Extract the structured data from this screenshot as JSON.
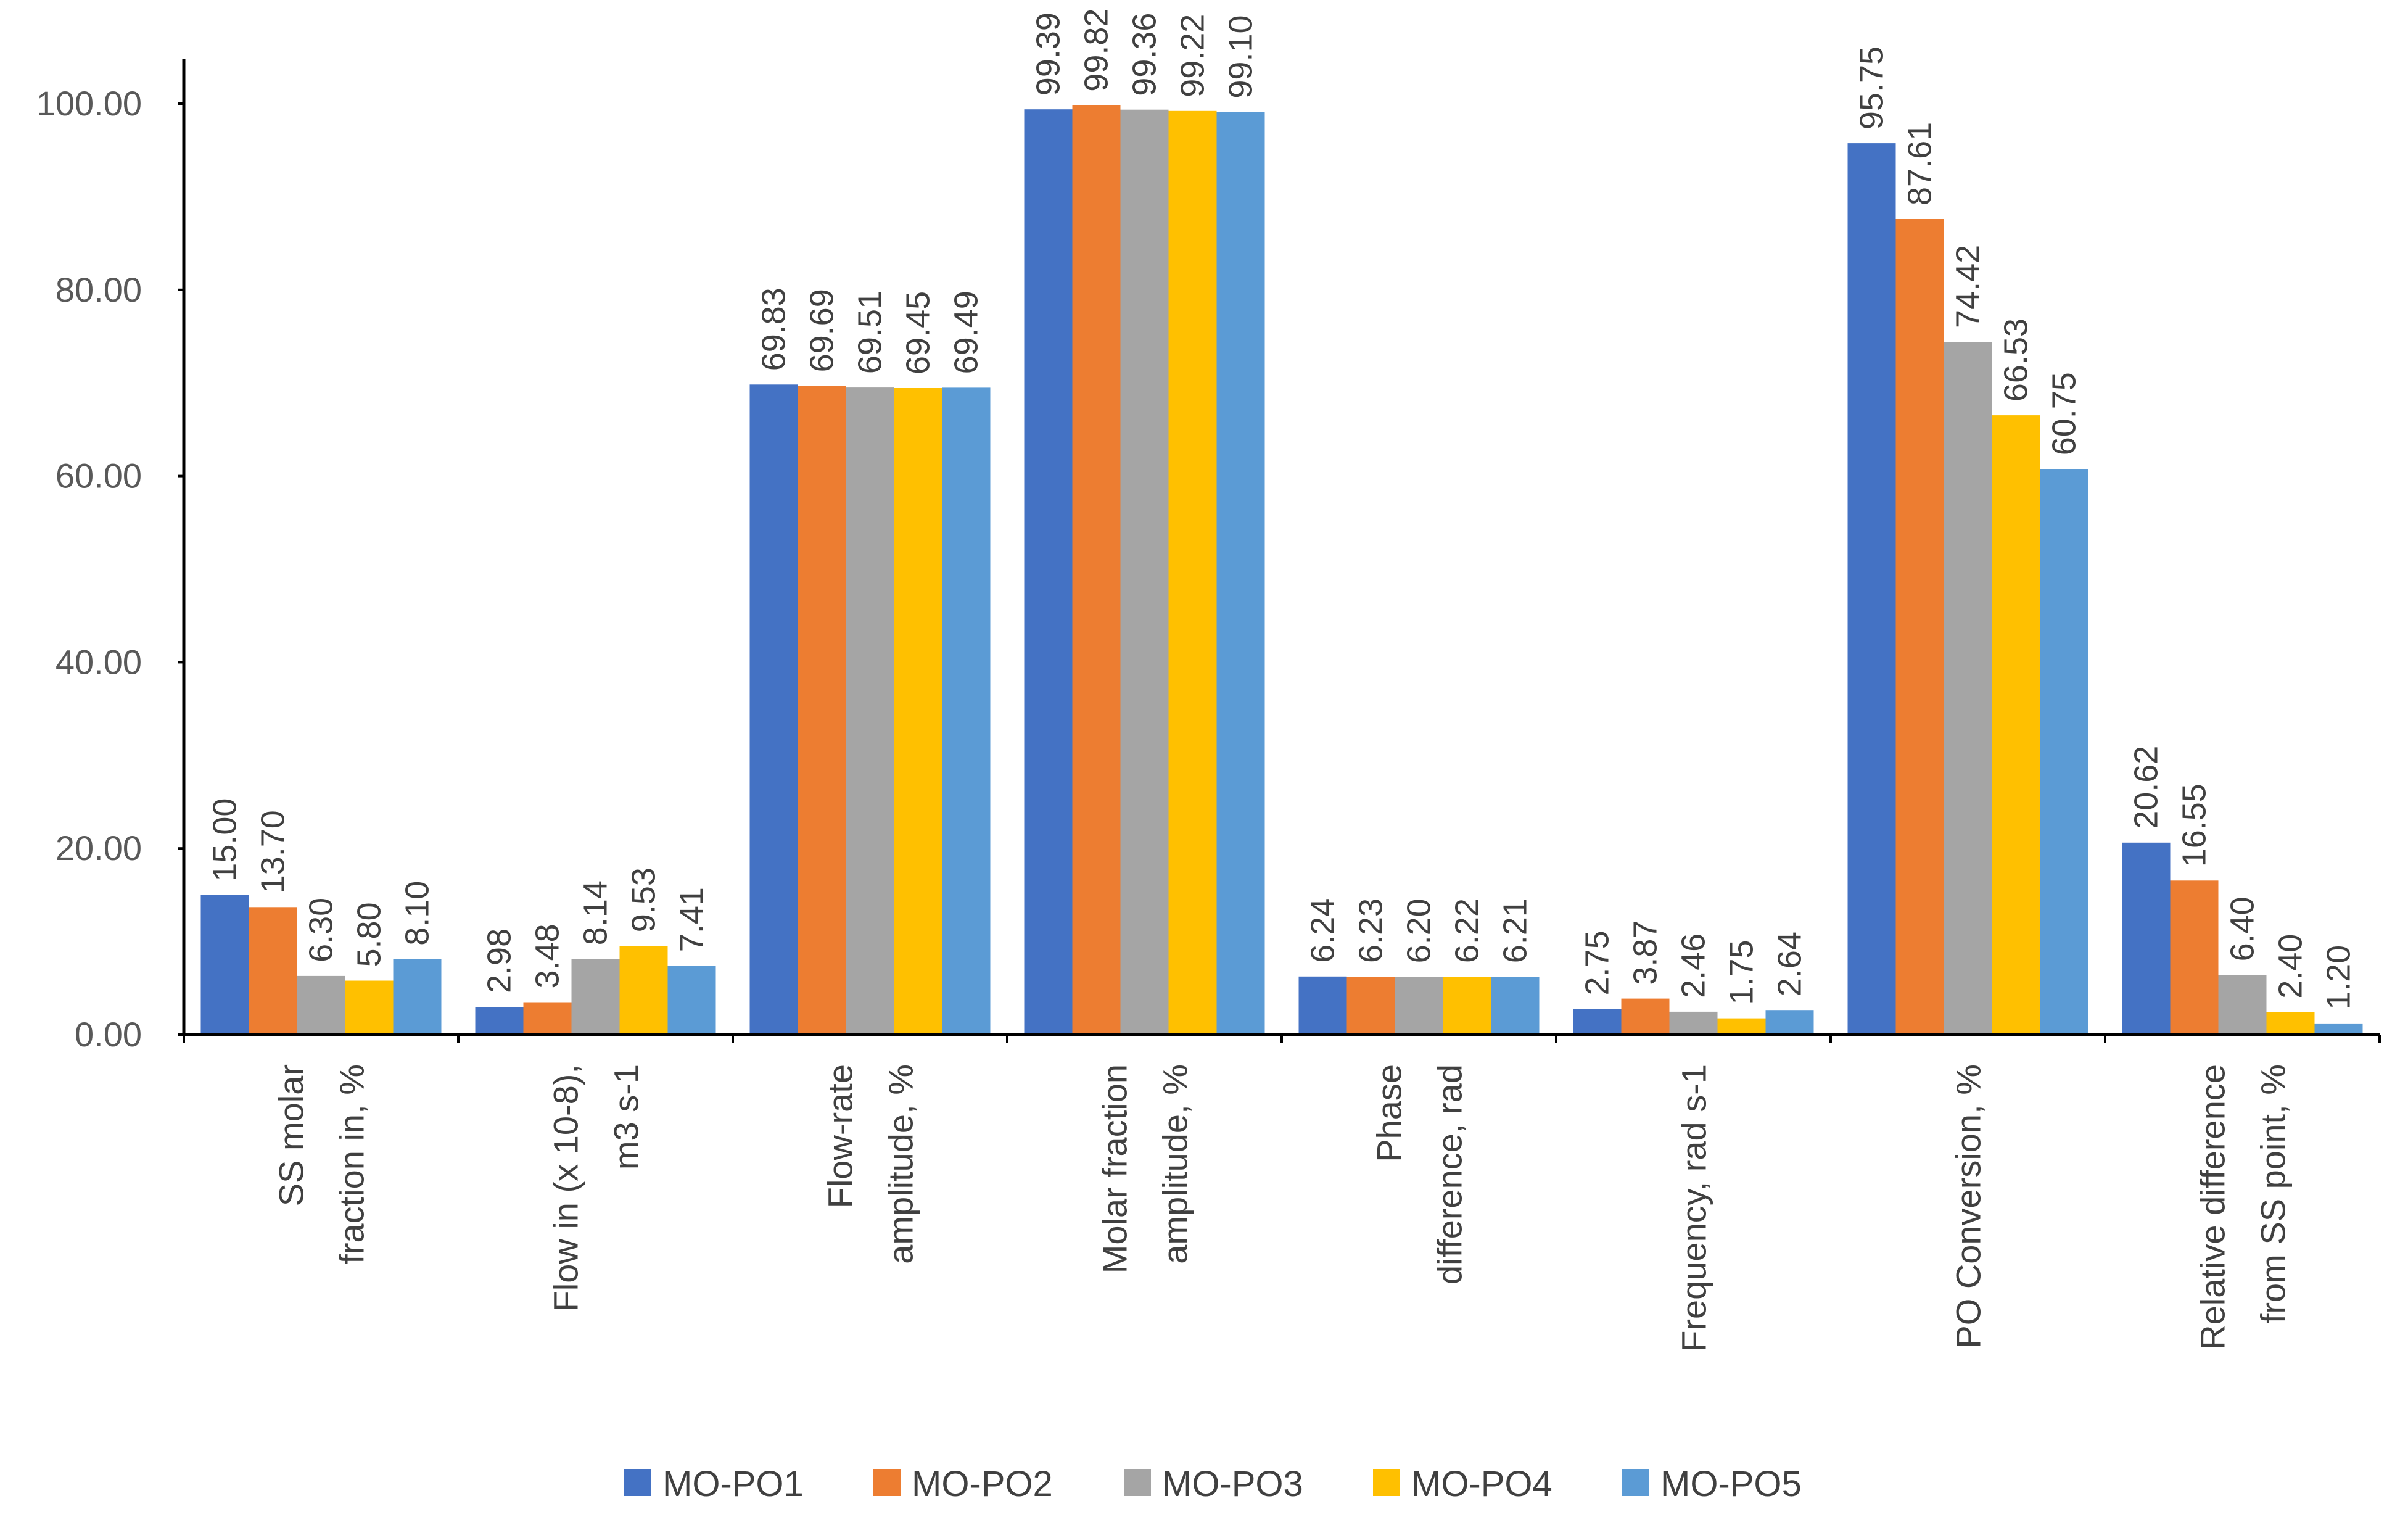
{
  "chart_data": {
    "type": "bar",
    "title": "",
    "xlabel": "",
    "ylabel": "",
    "ylim": [
      0,
      100
    ],
    "yticks": [
      "0.00",
      "20.00",
      "40.00",
      "60.00",
      "80.00",
      "100.00"
    ],
    "legend_position": "bottom",
    "categories": [
      [
        "SS molar",
        "fraction in, %"
      ],
      [
        "Flow in (x 10-8),",
        "m3 s-1"
      ],
      [
        "Flow-rate",
        "amplitude, %"
      ],
      [
        "Molar fraction",
        "amplitude, %"
      ],
      [
        "Phase",
        "difference, rad"
      ],
      [
        "Frequency, rad s-1"
      ],
      [
        "PO Conversion, %"
      ],
      [
        "Relative difference",
        "from SS point, %"
      ]
    ],
    "series": [
      {
        "name": "MO-PO1",
        "color": "#4472C4",
        "values": [
          15.0,
          2.98,
          69.83,
          99.39,
          6.24,
          2.75,
          95.75,
          20.62
        ],
        "labels": [
          "15.00",
          "2.98",
          "69.83",
          "99.39",
          "6.24",
          "2.75",
          "95.75",
          "20.62"
        ]
      },
      {
        "name": "MO-PO2",
        "color": "#ED7D31",
        "values": [
          13.7,
          3.48,
          69.69,
          99.82,
          6.23,
          3.87,
          87.61,
          16.55
        ],
        "labels": [
          "13.70",
          "3.48",
          "69.69",
          "99.82",
          "6.23",
          "3.87",
          "87.61",
          "16.55"
        ]
      },
      {
        "name": "MO-PO3",
        "color": "#A5A5A5",
        "values": [
          6.3,
          8.14,
          69.51,
          99.36,
          6.2,
          2.46,
          74.42,
          6.4
        ],
        "labels": [
          "6.30",
          "8.14",
          "69.51",
          "99.36",
          "6.20",
          "2.46",
          "74.42",
          "6.40"
        ]
      },
      {
        "name": "MO-PO4",
        "color": "#FFC000",
        "values": [
          5.8,
          9.53,
          69.45,
          99.22,
          6.22,
          1.75,
          66.53,
          2.4
        ],
        "labels": [
          "5.80",
          "9.53",
          "69.45",
          "99.22",
          "6.22",
          "1.75",
          "66.53",
          "2.40"
        ]
      },
      {
        "name": "MO-PO5",
        "color": "#5B9BD5",
        "values": [
          8.1,
          7.41,
          69.49,
          99.1,
          6.21,
          2.64,
          60.75,
          1.2
        ],
        "labels": [
          "8.10",
          "7.41",
          "69.49",
          "99.10",
          "6.21",
          "2.64",
          "60.75",
          "1.20"
        ]
      }
    ]
  }
}
